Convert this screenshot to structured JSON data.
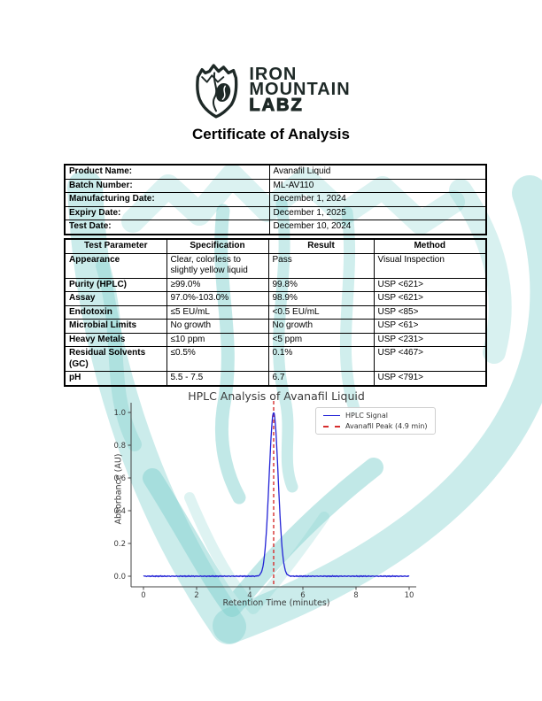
{
  "logo": {
    "line1": "IRON",
    "line2": "MOUNTAIN",
    "line3": "LABZ",
    "icon": "mountain-shield-icon",
    "color": "#1e2927",
    "watermark_color": "#7ecfcd"
  },
  "page": {
    "heading": "Certificate of Analysis"
  },
  "info_table": {
    "rows": [
      {
        "label": "Product Name:",
        "value": "Avanafil Liquid"
      },
      {
        "label": "Batch Number:",
        "value": "ML-AV110"
      },
      {
        "label": "Manufacturing Date:",
        "value": "December 1, 2024"
      },
      {
        "label": "Expiry Date:",
        "value": "December 1, 2025"
      },
      {
        "label": "Test Date:",
        "value": "December 10, 2024"
      }
    ]
  },
  "test_table": {
    "headers": [
      "Test Parameter",
      "Specification",
      "Result",
      "Method"
    ],
    "rows": [
      [
        "Appearance",
        "Clear, colorless to slightly yellow liquid",
        "Pass",
        "Visual Inspection"
      ],
      [
        "Purity (HPLC)",
        "≥99.0%",
        "99.8%",
        "USP <621>"
      ],
      [
        "Assay",
        "97.0%-103.0%",
        "98.9%",
        "USP <621>"
      ],
      [
        "Endotoxin",
        "≤5 EU/mL",
        "<0.5 EU/mL",
        "USP <85>"
      ],
      [
        "Microbial Limits",
        "No growth",
        "No growth",
        "USP <61>"
      ],
      [
        "Heavy Metals",
        "≤10 ppm",
        "<5 ppm",
        "USP <231>"
      ],
      [
        "Residual Solvents (GC)",
        "≤0.5%",
        "0.1%",
        "USP <467>"
      ],
      [
        "pH",
        "5.5 - 7.5",
        "6.7",
        "USP <791>"
      ]
    ]
  },
  "chart_data": {
    "type": "line",
    "title": "HPLC Analysis of Avanafil Liquid",
    "xlabel": "Retention Time (minutes)",
    "ylabel": "Absorbance (AU)",
    "xlim": [
      0,
      10
    ],
    "ylim": [
      0,
      1.05
    ],
    "xticks": [
      0,
      2,
      4,
      6,
      8,
      10
    ],
    "yticks": [
      0.0,
      0.2,
      0.4,
      0.6,
      0.8,
      1.0
    ],
    "grid": false,
    "legend_position": "upper right",
    "series": [
      {
        "name": "HPLC Signal",
        "color": "#2323d6",
        "style": "solid",
        "baseline": 0.0,
        "noise_amplitude": 0.004,
        "peak": {
          "center": 4.9,
          "height": 1.0,
          "sigma": 0.17
        }
      }
    ],
    "annotations": [
      {
        "type": "vline",
        "x": 4.9,
        "label": "Avanafil Peak (4.9 min)",
        "color": "#d62d2d",
        "style": "dashed"
      }
    ]
  }
}
